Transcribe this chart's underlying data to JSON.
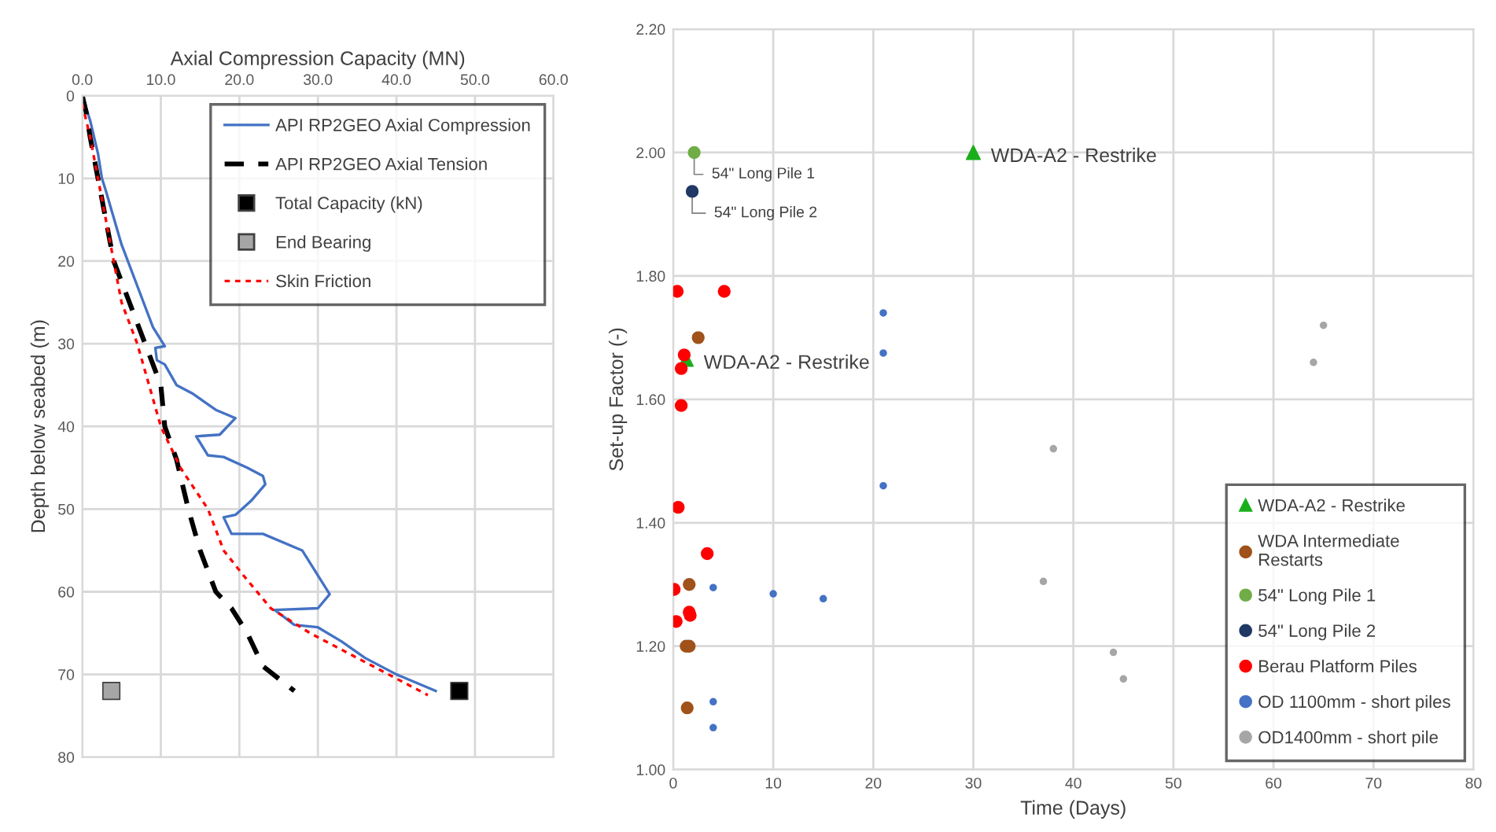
{
  "chart_data": [
    {
      "type": "line",
      "xlabel": "Axial Compression Capacity (MN)",
      "ylabel": "Depth below seabed (m)",
      "xlim": [
        0,
        60
      ],
      "xticks": [
        {
          "value": 0,
          "label": "0.0"
        },
        {
          "value": 10,
          "label": "10.0"
        },
        {
          "value": 20,
          "label": "20.0"
        },
        {
          "value": 30,
          "label": "30.0"
        },
        {
          "value": 40,
          "label": "40.0"
        },
        {
          "value": 50,
          "label": "50.0"
        },
        {
          "value": 60,
          "label": "60.0"
        }
      ],
      "ylim": [
        80,
        0
      ],
      "yticks": [
        0,
        10,
        20,
        30,
        40,
        50,
        60,
        70,
        80
      ],
      "grid": true,
      "legend": "top right",
      "series": [
        {
          "name": "API RP2GEO Axial Compression",
          "color": "#4472c4",
          "line_style": "solid",
          "marker": "none",
          "x": [
            0,
            1,
            2,
            2.5,
            3,
            5,
            7,
            9,
            10.5,
            9.3,
            9.5,
            10.5,
            12,
            14,
            17,
            19.5,
            17.5,
            14.5,
            16,
            18,
            21,
            23,
            23.3,
            21.5,
            19.5,
            18,
            19,
            23,
            28,
            31.5,
            30,
            24.5,
            27,
            30,
            33,
            36,
            40,
            45
          ],
          "values": [
            0,
            3,
            7,
            10,
            11.5,
            18,
            23,
            28,
            30.3,
            30.5,
            32,
            32.5,
            35,
            36,
            38,
            39,
            41,
            41.2,
            43.5,
            43.7,
            45,
            46,
            47,
            49,
            50.7,
            51,
            53,
            53,
            55,
            60.3,
            62,
            62.2,
            64,
            64.3,
            66,
            68,
            70,
            72
          ]
        },
        {
          "name": "API RP2GEO Axial Tension",
          "color": "#000000",
          "line_style": "dashed",
          "marker": "none",
          "x": [
            0,
            0.5,
            1,
            2,
            3,
            4,
            6,
            8,
            10,
            10.5,
            12,
            13.5,
            15,
            17,
            19,
            21,
            23,
            27
          ],
          "values": [
            0,
            2,
            5,
            10,
            15,
            20,
            25,
            30,
            35,
            40,
            44,
            50,
            55,
            60,
            62,
            65,
            69,
            72
          ]
        },
        {
          "name": "Total Capacity (kN)",
          "type": "scatter",
          "color": "#000000",
          "marker": "square",
          "x": [
            48
          ],
          "values": [
            72
          ]
        },
        {
          "name": "End Bearing",
          "type": "scatter",
          "color": "#a6a6a6",
          "marker": "square",
          "x": [
            3.7
          ],
          "values": [
            72
          ]
        },
        {
          "name": "Skin Friction",
          "color": "#ff0000",
          "line_style": "dotted",
          "marker": "none",
          "x": [
            0,
            1,
            2,
            3,
            4,
            5,
            7,
            8.5,
            10,
            12.5,
            16,
            18,
            20.5,
            24,
            29,
            35,
            44
          ],
          "values": [
            1,
            5,
            10,
            15,
            20,
            25,
            30,
            35,
            40,
            45,
            50,
            55,
            58,
            62,
            65,
            68,
            72.5
          ]
        }
      ]
    },
    {
      "type": "scatter",
      "xlabel": "Time (Days)",
      "ylabel": "Set-up Factor (-)",
      "xlim": [
        0,
        80
      ],
      "xticks": [
        0,
        10,
        20,
        30,
        40,
        50,
        60,
        70,
        80
      ],
      "ylim": [
        1.0,
        2.2
      ],
      "yticks": [
        {
          "value": 1.0,
          "label": "1.00"
        },
        {
          "value": 1.2,
          "label": "1.20"
        },
        {
          "value": 1.4,
          "label": "1.40"
        },
        {
          "value": 1.6,
          "label": "1.60"
        },
        {
          "value": 1.8,
          "label": "1.80"
        },
        {
          "value": 2.0,
          "label": "2.00"
        },
        {
          "value": 2.2,
          "label": "2.20"
        }
      ],
      "grid": true,
      "legend": "bottom right",
      "annotations": [
        {
          "text": "WDA-A2 - Restrike",
          "x": 1.3,
          "y": 1.665
        },
        {
          "text": "WDA-A2 - Restrike",
          "x": 30,
          "y": 2.0
        },
        {
          "text": "54\" Long Pile 1",
          "x": 2.1,
          "y": 2.0
        },
        {
          "text": "54\" Long Pile 2",
          "x": 1.9,
          "y": 1.937
        }
      ],
      "series": [
        {
          "name": "WDA-A2 - Restrike",
          "color": "#1aaf1a",
          "marker": "triangle",
          "x": [
            1.3,
            30
          ],
          "values": [
            1.665,
            2.0
          ]
        },
        {
          "name": "WDA Intermediate\nRestarts",
          "color": "#a0521a",
          "marker": "circle",
          "x": [
            2.5,
            1.6,
            1.3,
            1.6,
            1.4
          ],
          "values": [
            1.7,
            1.3,
            1.2,
            1.2,
            1.1
          ]
        },
        {
          "name": "54\" Long Pile 1",
          "color": "#70ad47",
          "marker": "circle",
          "x": [
            2.1
          ],
          "values": [
            2.0
          ]
        },
        {
          "name": "54\" Long Pile 2",
          "color": "#203864",
          "marker": "circle",
          "x": [
            1.9
          ],
          "values": [
            1.937
          ]
        },
        {
          "name": "Berau Platform Piles",
          "color": "#ff0000",
          "marker": "circle",
          "x": [
            0.4,
            5.1,
            1.1,
            0.8,
            0.8,
            0.5,
            3.4,
            0.1,
            1.6,
            1.7,
            0.3
          ],
          "values": [
            1.775,
            1.775,
            1.672,
            1.65,
            1.59,
            1.425,
            1.35,
            1.292,
            1.255,
            1.25,
            1.24
          ]
        },
        {
          "name": "OD 1100mm - short piles",
          "color": "#4472c4",
          "marker": "circle",
          "x": [
            21,
            21,
            21,
            4,
            10,
            15,
            4,
            4
          ],
          "values": [
            1.74,
            1.675,
            1.46,
            1.295,
            1.285,
            1.277,
            1.11,
            1.068
          ]
        },
        {
          "name": "OD1400mm - short pile",
          "color": "#a6a6a6",
          "marker": "circle",
          "x": [
            65,
            64,
            38,
            37,
            44,
            45
          ],
          "values": [
            1.72,
            1.66,
            1.52,
            1.305,
            1.19,
            1.147
          ]
        }
      ]
    }
  ]
}
